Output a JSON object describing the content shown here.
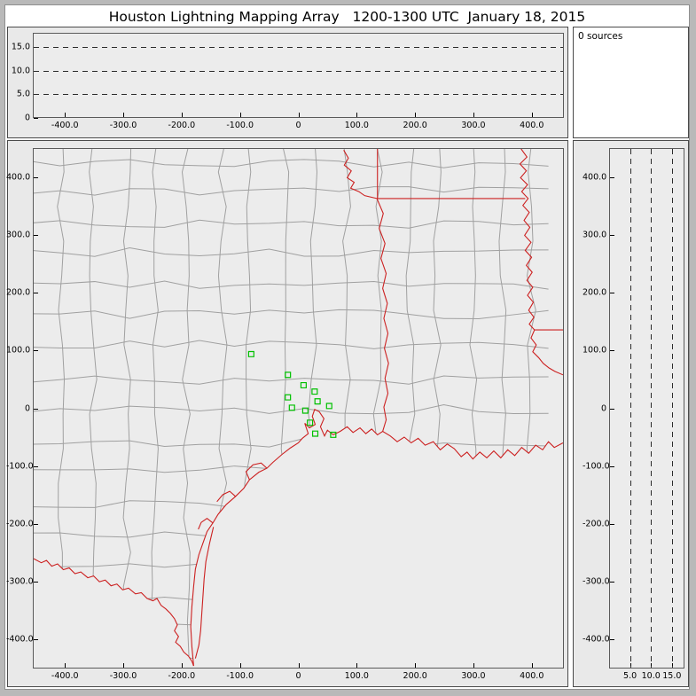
{
  "title": "Houston Lightning Mapping Array   1200-1300 UTC  January 18, 2015",
  "colors": {
    "plot_bg": "#ececec",
    "county_line": "#a0a0a0",
    "state_border": "#cc2020",
    "station": "#00c000",
    "gridline": "#2a2a2a"
  },
  "chart_data": [
    {
      "id": "altitude-vs-eastwest",
      "type": "scatter",
      "xlabel": "",
      "ylabel": "",
      "x_range": [
        -455,
        455
      ],
      "y_range": [
        0,
        18
      ],
      "x_ticks": [
        {
          "v": -400,
          "label": "-400.0"
        },
        {
          "v": -300,
          "label": "-300.0"
        },
        {
          "v": -200,
          "label": "-200.0"
        },
        {
          "v": -100,
          "label": "-100.0"
        },
        {
          "v": 0,
          "label": "0"
        },
        {
          "v": 100,
          "label": "100.0"
        },
        {
          "v": 200,
          "label": "200.0"
        },
        {
          "v": 300,
          "label": "300.0"
        },
        {
          "v": 400,
          "label": "400.0"
        }
      ],
      "y_ticks": [
        {
          "v": 15,
          "label": "15.0"
        },
        {
          "v": 10,
          "label": "10.0"
        },
        {
          "v": 5,
          "label": "5.0"
        },
        {
          "v": 0,
          "label": "0"
        }
      ],
      "gridlines_y": [
        5,
        10,
        15
      ],
      "points": []
    },
    {
      "id": "source-count-histogram",
      "type": "scatter",
      "label": "0 sources",
      "points": []
    },
    {
      "id": "plan-view-map",
      "type": "scatter",
      "x_range": [
        -455,
        455
      ],
      "y_range": [
        -450,
        450
      ],
      "x_ticks": [
        {
          "v": -400,
          "label": "-400.0"
        },
        {
          "v": -300,
          "label": "-300.0"
        },
        {
          "v": -200,
          "label": "-200.0"
        },
        {
          "v": -100,
          "label": "-100.0"
        },
        {
          "v": 0,
          "label": "0"
        },
        {
          "v": 100,
          "label": "100.0"
        },
        {
          "v": 200,
          "label": "200.0"
        },
        {
          "v": 300,
          "label": "300.0"
        },
        {
          "v": 400,
          "label": "400.0"
        }
      ],
      "y_ticks": [
        {
          "v": 400,
          "label": "400.0"
        },
        {
          "v": 300,
          "label": "300.0"
        },
        {
          "v": 200,
          "label": "200.0"
        },
        {
          "v": 100,
          "label": "100.0"
        },
        {
          "v": 0,
          "label": "0"
        },
        {
          "v": -100,
          "label": "-100.0"
        },
        {
          "v": -200,
          "label": "-200.0"
        },
        {
          "v": -300,
          "label": "-300.0"
        },
        {
          "v": -400,
          "label": "-400.0"
        }
      ],
      "stations": [
        [
          -81,
          94
        ],
        [
          -18,
          58
        ],
        [
          9,
          40
        ],
        [
          28,
          29
        ],
        [
          -18,
          19
        ],
        [
          33,
          12
        ],
        [
          -11,
          1
        ],
        [
          12,
          -4
        ],
        [
          53,
          4
        ],
        [
          20,
          -25
        ],
        [
          29,
          -44
        ],
        [
          60,
          -46
        ]
      ],
      "points": []
    },
    {
      "id": "altitude-vs-northsouth",
      "type": "scatter",
      "x_range": [
        0,
        18
      ],
      "y_range": [
        -450,
        450
      ],
      "x_ticks": [
        {
          "v": 5,
          "label": "5.0"
        },
        {
          "v": 10,
          "label": "10.0"
        },
        {
          "v": 15,
          "label": "15.0"
        }
      ],
      "y_ticks": [
        {
          "v": 400,
          "label": "400.0"
        },
        {
          "v": 300,
          "label": "300.0"
        },
        {
          "v": 200,
          "label": "200.0"
        },
        {
          "v": 100,
          "label": "100.0"
        },
        {
          "v": 0,
          "label": "0"
        },
        {
          "v": -100,
          "label": "-100.0"
        },
        {
          "v": -200,
          "label": "-200.0"
        },
        {
          "v": -300,
          "label": "-300.0"
        },
        {
          "v": -400,
          "label": "-400.0"
        }
      ],
      "gridlines_x": [
        5,
        10,
        15
      ],
      "points": []
    }
  ]
}
